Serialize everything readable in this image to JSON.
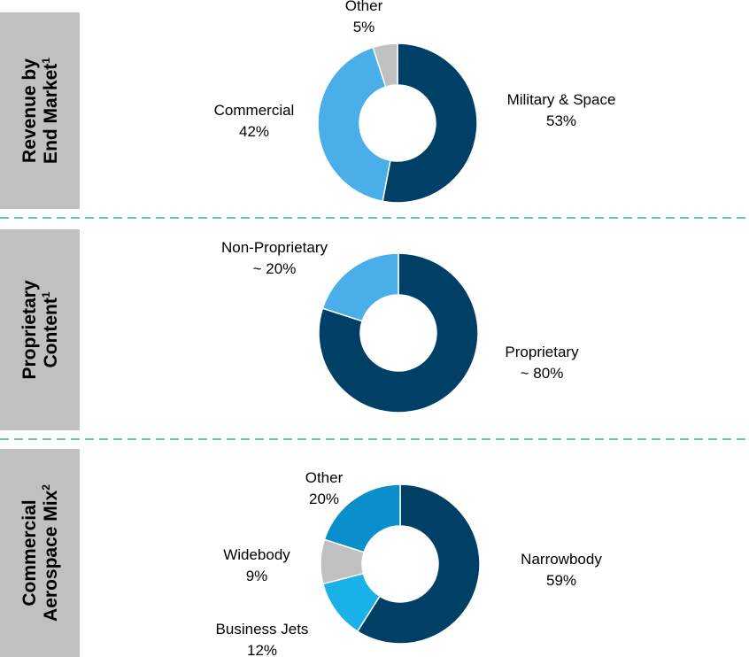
{
  "chart_data": [
    {
      "type": "donut",
      "title_lines": [
        "Revenue by",
        "End Market"
      ],
      "title_note": "1",
      "categories": [
        "Military & Space",
        "Commercial",
        "Other"
      ],
      "values": [
        53,
        42,
        5
      ],
      "value_labels": [
        "53%",
        "42%",
        "5%"
      ],
      "colors": [
        "#003f66",
        "#4aaee8",
        "#c0c0c0"
      ]
    },
    {
      "type": "donut",
      "title_lines": [
        "Proprietary",
        "Content"
      ],
      "title_note": "1",
      "categories": [
        "Proprietary",
        "Non-Proprietary"
      ],
      "values": [
        80,
        20
      ],
      "value_labels": [
        "~ 80%",
        "~ 20%"
      ],
      "colors": [
        "#003f66",
        "#4aaee8"
      ]
    },
    {
      "type": "donut",
      "title_lines": [
        "Commercial",
        "Aerospace Mix"
      ],
      "title_note": "2",
      "categories": [
        "Narrowbody",
        "Business Jets",
        "Widebody",
        "Other"
      ],
      "values": [
        59,
        12,
        9,
        20
      ],
      "value_labels": [
        "59%",
        "12%",
        "9%",
        "20%"
      ],
      "colors": [
        "#003f66",
        "#1ab0e8",
        "#c0c0c0",
        "#0b8fcc"
      ]
    }
  ]
}
